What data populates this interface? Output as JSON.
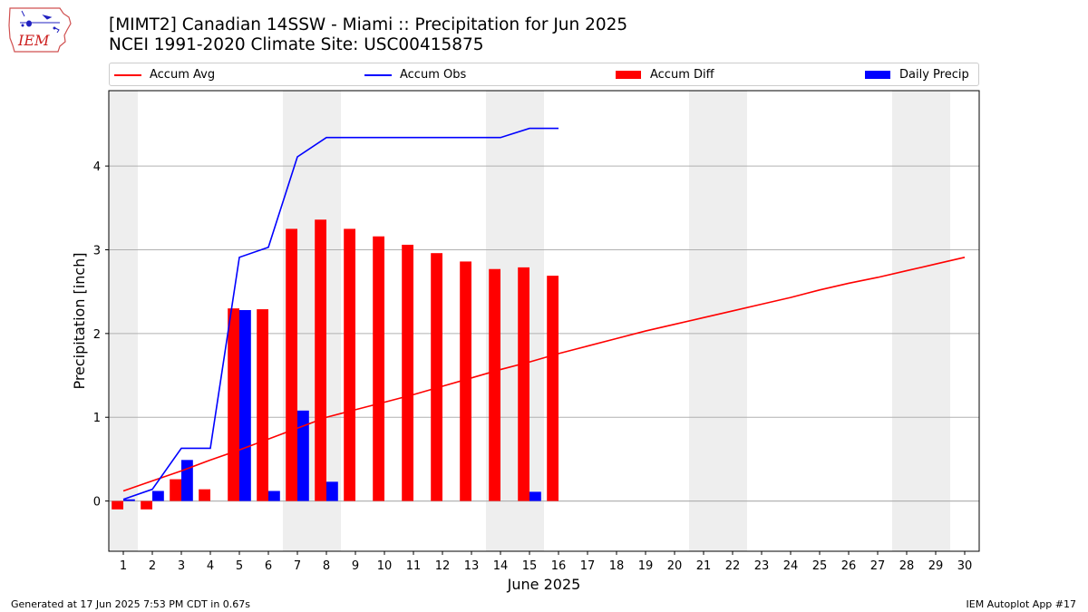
{
  "header": {
    "title_line1": "[MIMT2] Canadian 14SSW - Miami :: Precipitation for Jun 2025",
    "title_line2": "NCEI 1991-2020 Climate Site: USC00415875",
    "logo_text": "IEM"
  },
  "legend": {
    "accum_avg": "Accum Avg",
    "accum_obs": "Accum Obs",
    "accum_diff": "Accum Diff",
    "daily_precip": "Daily Precip"
  },
  "footer": {
    "left": "Generated at 17 Jun 2025 7:53 PM CDT in 0.67s",
    "right": "IEM Autoplot App #17"
  },
  "colors": {
    "accum_avg": "#ff0000",
    "accum_obs": "#0000ff",
    "accum_diff": "#ff0000",
    "daily_precip": "#0000ff",
    "weekend_shade": "#eeeeee",
    "grid": "#b0b0b0"
  },
  "chart_data": {
    "type": "bar",
    "xlabel": "June 2025",
    "ylabel": "Precipitation [inch]",
    "x": [
      1,
      2,
      3,
      4,
      5,
      6,
      7,
      8,
      9,
      10,
      11,
      12,
      13,
      14,
      15,
      16,
      17,
      18,
      19,
      20,
      21,
      22,
      23,
      24,
      25,
      26,
      27,
      28,
      29,
      30
    ],
    "xlim": [
      0.5,
      30.5
    ],
    "ylim": [
      -0.6,
      4.9
    ],
    "yticks": [
      0,
      1,
      2,
      3,
      4
    ],
    "grid": "horizontal",
    "legend_position": "top",
    "weekend_days": [
      1,
      7,
      8,
      14,
      15,
      21,
      22,
      28,
      29
    ],
    "series": [
      {
        "name": "Accum Avg",
        "kind": "line",
        "x": [
          1,
          2,
          3,
          4,
          5,
          6,
          7,
          8,
          9,
          10,
          11,
          12,
          13,
          14,
          15,
          16,
          17,
          18,
          19,
          20,
          21,
          22,
          23,
          24,
          25,
          26,
          27,
          28,
          29,
          30
        ],
        "values": [
          0.12,
          0.24,
          0.36,
          0.49,
          0.61,
          0.74,
          0.87,
          1.0,
          1.09,
          1.18,
          1.27,
          1.37,
          1.47,
          1.57,
          1.66,
          1.76,
          1.85,
          1.94,
          2.03,
          2.11,
          2.19,
          2.27,
          2.35,
          2.43,
          2.52,
          2.6,
          2.67,
          2.75,
          2.83,
          2.91
        ]
      },
      {
        "name": "Accum Obs",
        "kind": "line",
        "x": [
          1,
          2,
          3,
          4,
          5,
          6,
          7,
          8,
          9,
          10,
          11,
          12,
          13,
          14,
          15,
          16
        ],
        "values": [
          0.02,
          0.14,
          0.63,
          0.63,
          2.91,
          3.03,
          4.11,
          4.34,
          4.34,
          4.34,
          4.34,
          4.34,
          4.34,
          4.34,
          4.45,
          4.45
        ]
      },
      {
        "name": "Accum Diff",
        "kind": "bar",
        "x": [
          1,
          2,
          3,
          4,
          5,
          6,
          7,
          8,
          9,
          10,
          11,
          12,
          13,
          14,
          15,
          16
        ],
        "values": [
          -0.1,
          -0.1,
          0.26,
          0.14,
          2.3,
          2.29,
          3.25,
          3.36,
          3.25,
          3.16,
          3.06,
          2.96,
          2.86,
          2.77,
          2.79,
          2.69
        ]
      },
      {
        "name": "Daily Precip",
        "kind": "bar",
        "x": [
          1,
          2,
          3,
          4,
          5,
          6,
          7,
          8,
          9,
          10,
          11,
          12,
          13,
          14,
          15,
          16
        ],
        "values": [
          0.02,
          0.12,
          0.49,
          0.0,
          2.28,
          0.12,
          1.08,
          0.23,
          0.0,
          0.0,
          0.0,
          0.0,
          0.0,
          0.0,
          0.11,
          0.0
        ]
      }
    ]
  }
}
